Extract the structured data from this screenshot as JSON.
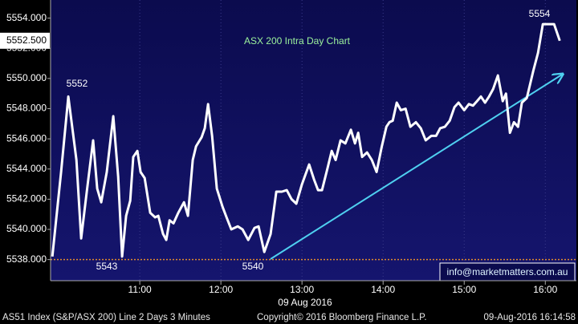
{
  "chart_data": {
    "type": "line",
    "title": "ASX 200 Intra Day Chart",
    "title_color": "#9cf29c",
    "xlabel": "09 Aug 2016",
    "color": "#ffffff",
    "x": [
      595.3,
      601.8,
      607.1,
      613.1,
      616.6,
      620.8,
      625.5,
      628.5,
      631.5,
      635.6,
      640.4,
      644.0,
      646.9,
      649.9,
      652.9,
      655.2,
      658.2,
      660.6,
      663.6,
      667.7,
      671.3,
      673.7,
      677.2,
      679.6,
      682.0,
      684.9,
      688.5,
      692.7,
      695.6,
      699.2,
      701.6,
      705.7,
      708.1,
      710.5,
      713.5,
      717.0,
      721.2,
      724.2,
      727.7,
      732.5,
      736.0,
      740.2,
      744.9,
      747.9,
      752.1,
      756.8,
      761.0,
      765.1,
      768.7,
      772.3,
      775.8,
      780.0,
      785.3,
      788.9,
      791.9,
      794.8,
      799.0,
      802.0,
      804.9,
      808.5,
      812.1,
      816.2,
      819.2,
      821.6,
      824.5,
      828.1,
      831.7,
      835.2,
      838.8,
      842.4,
      844.7,
      847.1,
      850.1,
      853.1,
      856.6,
      860.2,
      864.3,
      867.9,
      871.5,
      875.6,
      879.2,
      882.2,
      885.7,
      889.3,
      892.8,
      895.8,
      900.0,
      903.5,
      906.5,
      909.5,
      912.4,
      915.4,
      918.4,
      921.4,
      924.9,
      928.5,
      930.9,
      933.8,
      936.8,
      939.8,
      942.7,
      946.3,
      951.1,
      954.6,
      958.2,
      966.5,
      970.7
    ],
    "values": [
      5538.2,
      5543.8,
      5548.8,
      5544.6,
      5539.4,
      5542.5,
      5545.9,
      5542.7,
      5541.8,
      5543.8,
      5547.5,
      5543.5,
      5538.2,
      5540.9,
      5541.9,
      5544.8,
      5545.2,
      5543.8,
      5543.4,
      5541.1,
      5540.8,
      5540.9,
      5539.7,
      5539.3,
      5540.6,
      5540.4,
      5541.1,
      5541.8,
      5540.9,
      5544.6,
      5545.5,
      5546.1,
      5546.7,
      5548.3,
      5546.2,
      5542.7,
      5541.5,
      5540.8,
      5540.0,
      5540.2,
      5540.0,
      5539.3,
      5540.1,
      5540.2,
      5538.5,
      5539.7,
      5542.5,
      5542.5,
      5542.6,
      5542.0,
      5541.7,
      5543.0,
      5544.3,
      5543.3,
      5542.6,
      5542.6,
      5544.1,
      5545.2,
      5544.6,
      5545.9,
      5545.7,
      5546.6,
      5545.7,
      5546.4,
      5544.8,
      5545.1,
      5544.6,
      5543.8,
      5545.4,
      5546.8,
      5547.1,
      5547.2,
      5548.4,
      5547.9,
      5548.0,
      5546.8,
      5547.1,
      5546.7,
      5545.9,
      5546.2,
      5546.2,
      5546.7,
      5546.8,
      5547.2,
      5548.1,
      5548.4,
      5547.9,
      5548.3,
      5548.2,
      5548.5,
      5548.8,
      5548.4,
      5548.8,
      5549.3,
      5550.2,
      5548.5,
      5549.0,
      5546.4,
      5547.1,
      5546.8,
      5548.4,
      5548.7,
      5550.5,
      5551.7,
      5553.6,
      5553.6,
      5552.5
    ],
    "xlim": [
      594,
      983
    ],
    "ylim": [
      5536.6,
      5555.2
    ],
    "xticks": [
      {
        "value": 660,
        "label": "11:00"
      },
      {
        "value": 720,
        "label": "12:00"
      },
      {
        "value": 780,
        "label": "13:00"
      },
      {
        "value": 840,
        "label": "14:00"
      },
      {
        "value": 900,
        "label": "15:00"
      },
      {
        "value": 960,
        "label": "16:00"
      }
    ],
    "yticks": [
      {
        "value": 5538,
        "label": "5538.000"
      },
      {
        "value": 5540,
        "label": "5540.000"
      },
      {
        "value": 5542,
        "label": "5542.000"
      },
      {
        "value": 5544,
        "label": "5544.000"
      },
      {
        "value": 5546,
        "label": "5546.000"
      },
      {
        "value": 5548,
        "label": "5548.000"
      },
      {
        "value": 5550,
        "label": "5550.000"
      },
      {
        "value": 5552,
        "label": "5552.000"
      },
      {
        "value": 5554,
        "label": "5554.000"
      }
    ],
    "grid": true,
    "hline": {
      "value": 5538,
      "color": "#e08a2c"
    },
    "last_price": {
      "value": 5552.5,
      "label": "5552.500"
    },
    "annotations": [
      "5552",
      "5543",
      "5540",
      "5554"
    ],
    "watermark": "info@marketmatters.com.au",
    "footer": {
      "left": "AS51 Index (S&P/ASX 200) Line 2 Days 3 Minutes",
      "center": "Copyright© 2016 Bloomberg Finance L.P.",
      "right": "09-Aug-2016 16:14:58"
    }
  }
}
